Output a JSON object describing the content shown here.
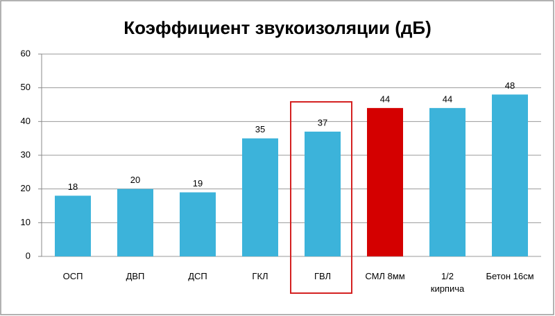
{
  "chart_data": {
    "type": "bar",
    "title": "Коэффициент звукоизоляции (дБ)",
    "categories": [
      "ОСП",
      "ДВП",
      "ДСП",
      "ГКЛ",
      "ГВЛ",
      "СМЛ 8мм",
      "1/2\nкирпича",
      "Бетон 16см"
    ],
    "values": [
      18,
      20,
      19,
      35,
      37,
      44,
      44,
      48
    ],
    "colors": [
      "#3cb3da",
      "#3cb3da",
      "#3cb3da",
      "#3cb3da",
      "#3cb3da",
      "#d40000",
      "#3cb3da",
      "#3cb3da"
    ],
    "ylim": [
      0,
      60
    ],
    "yticks": [
      0,
      10,
      20,
      30,
      40,
      50,
      60
    ],
    "grid": true
  }
}
